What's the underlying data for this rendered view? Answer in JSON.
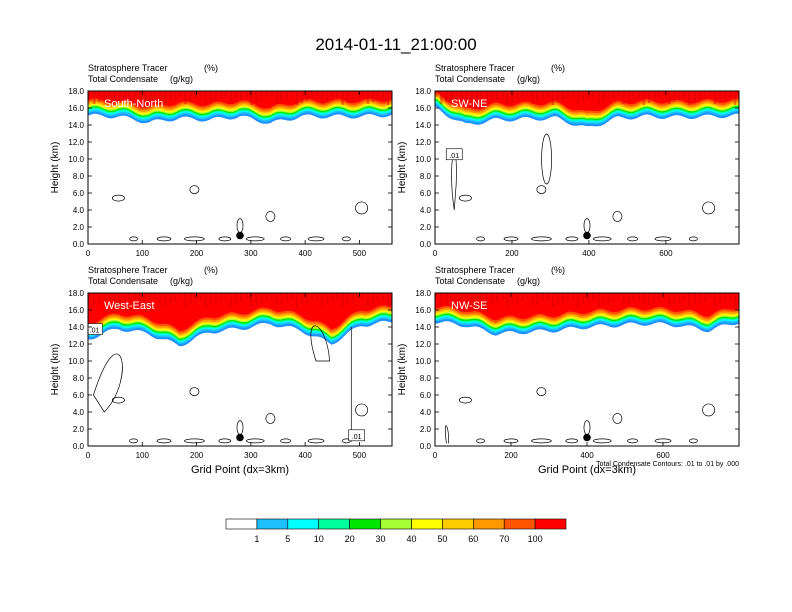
{
  "title": "2014-01-11_21:00:00",
  "chart_data": [
    {
      "type": "heatmap",
      "panel_label": "South-North",
      "left_label": "Stratosphere Tracer",
      "left_label2": "Total Condensate",
      "right_label": "(%)",
      "right_label2": "(g/kg)",
      "ylabel": "Height (km)",
      "xlabel": "",
      "xlim": [
        0,
        560
      ],
      "ylim": [
        0,
        18
      ],
      "xticks": [
        "0",
        "100",
        "200",
        "300",
        "400",
        "500"
      ],
      "xtick_values": [
        0,
        100,
        200,
        300,
        400,
        500
      ],
      "yticks": [
        "0.0",
        "2.0",
        "4.0",
        "6.0",
        "8.0",
        "10.0",
        "12.0",
        "14.0",
        "16.0",
        "18.0"
      ],
      "marker_x": 280,
      "tracer_base_km": [
        15.1,
        15.0,
        14.3,
        14.8,
        14.6,
        15.0,
        14.2,
        15.0,
        15.0,
        15.0,
        15.2
      ],
      "contour_labels": []
    },
    {
      "type": "heatmap",
      "panel_label": "SW-NE",
      "left_label": "Stratosphere Tracer",
      "left_label2": "Total Condensate",
      "right_label": "(%)",
      "right_label2": "(g/kg)",
      "ylabel": "Height (km)",
      "xlabel": "",
      "xlim": [
        0,
        790
      ],
      "ylim": [
        0,
        18
      ],
      "xticks": [
        "0",
        "200",
        "400",
        "600"
      ],
      "xtick_values": [
        0,
        200,
        400,
        600
      ],
      "yticks": [
        "0.0",
        "2.0",
        "4.0",
        "6.0",
        "8.0",
        "10.0",
        "12.0",
        "14.0",
        "16.0",
        "18.0"
      ],
      "marker_x": 395,
      "tracer_base_km": [
        16.0,
        14.0,
        14.6,
        14.7,
        14.8,
        13.6,
        14.8,
        15.0,
        14.9,
        15.0,
        15.1
      ],
      "contour_labels": [
        ".01"
      ]
    },
    {
      "type": "heatmap",
      "panel_label": "West-East",
      "left_label": "Stratosphere Tracer",
      "left_label2": "Total Condensate",
      "right_label": "(%)",
      "right_label2": "(g/kg)",
      "ylabel": "Height (km)",
      "xlabel": "Grid Point (dx=3km)",
      "xlim": [
        0,
        560
      ],
      "ylim": [
        0,
        18
      ],
      "xticks": [
        "0",
        "100",
        "200",
        "300",
        "400",
        "500"
      ],
      "xtick_values": [
        0,
        100,
        200,
        300,
        400,
        500
      ],
      "yticks": [
        "0.0",
        "2.0",
        "4.0",
        "6.0",
        "8.0",
        "10.0",
        "12.0",
        "14.0",
        "16.0",
        "18.0"
      ],
      "marker_x": 280,
      "tracer_base_km": [
        12.6,
        13.8,
        13.2,
        11.8,
        13.4,
        13.8,
        14.4,
        13.6,
        12.0,
        14.2,
        14.6
      ],
      "contour_labels": [
        ".01",
        ".01"
      ]
    },
    {
      "type": "heatmap",
      "panel_label": "NW-SE",
      "left_label": "Stratosphere Tracer",
      "left_label2": "Total Condensate",
      "right_label": "(%)",
      "right_label2": "(g/kg)",
      "ylabel": "Height (km)",
      "xlabel": "Grid Point (dx=3km)",
      "xlim": [
        0,
        800
      ],
      "ylim": [
        0,
        18
      ],
      "xticks": [
        "0",
        "200",
        "400",
        "600"
      ],
      "xtick_values": [
        0,
        200,
        400,
        600
      ],
      "yticks": [
        "0.0",
        "2.0",
        "4.0",
        "6.0",
        "8.0",
        "10.0",
        "12.0",
        "14.0",
        "16.0",
        "18.0"
      ],
      "marker_x": 400,
      "tracer_base_km": [
        14.6,
        14.2,
        13.2,
        13.4,
        13.6,
        14.0,
        14.2,
        14.4,
        14.2,
        13.6,
        14.6
      ],
      "contour_labels": [],
      "footnote": "Total Condensate Contours: .01 to .01 by .000"
    }
  ],
  "colorbar": {
    "labels": [
      "1",
      "5",
      "10",
      "20",
      "30",
      "40",
      "50",
      "60",
      "70",
      "100"
    ],
    "colors": [
      "#ffffff",
      "#1e90ff",
      "#1ebfff",
      "#00ffff",
      "#00ff9e",
      "#00e600",
      "#a6ff32",
      "#ffff00",
      "#ffcc00",
      "#ff9900",
      "#ff5500",
      "#ff0000"
    ]
  }
}
